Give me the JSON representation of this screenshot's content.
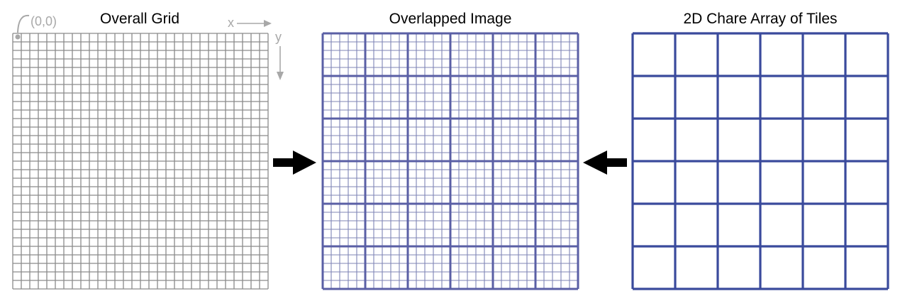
{
  "panels": {
    "overall": {
      "title": "Overall Grid",
      "fine_divisions": 30,
      "origin_label": "(0,0)",
      "x_label": "x",
      "y_label": "y"
    },
    "overlapped": {
      "title": "Overlapped Image",
      "fine_divisions": 30,
      "tile_divisions": 6
    },
    "tiles": {
      "title": "2D Chare Array of Tiles",
      "tile_divisions": 6
    }
  },
  "colors": {
    "fine_grid": "#8a8a8a",
    "overlap_fine_grid": "#7f84b6",
    "overlap_tile_grid": "#5a5fa5",
    "tile_grid": "#3a4a9c",
    "axis_annotation": "#a8a8a8",
    "arrow": "#000000"
  }
}
